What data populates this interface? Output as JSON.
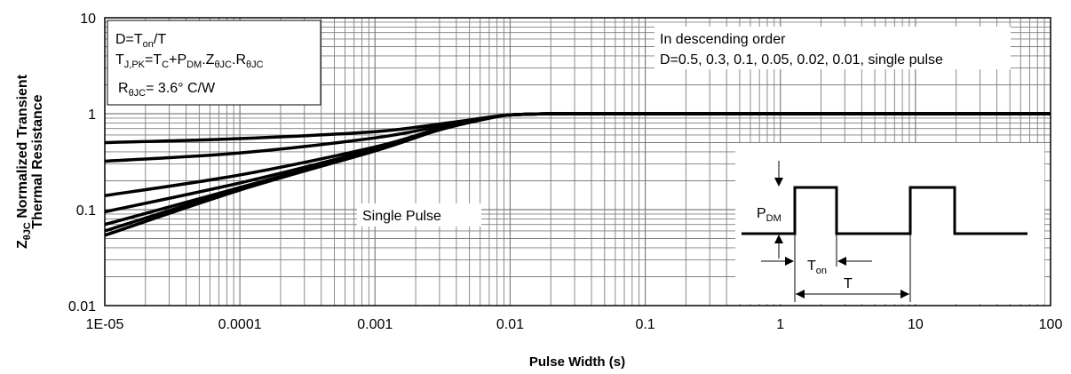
{
  "chart_data": {
    "type": "line",
    "xscale": "log",
    "yscale": "log",
    "xlim": [
      1e-05,
      100
    ],
    "ylim": [
      0.01,
      10
    ],
    "xticks": [
      "1E-05",
      "0.0001",
      "0.001",
      "0.01",
      "0.1",
      "1",
      "10",
      "100"
    ],
    "yticks": [
      "0.01",
      "0.1",
      "1",
      "10"
    ],
    "xlabel": "Pulse Width (s)",
    "ylabel_line1": "Normalized Transient",
    "ylabel_line2": "Thermal Resistance",
    "ylabel_prefix": "Z",
    "ylabel_prefix_sub": "θJC",
    "grid": true,
    "series": [
      {
        "duty": 0.5,
        "x": [
          1e-05,
          0.0001,
          0.001,
          0.003,
          0.007,
          0.01,
          0.02,
          0.1,
          1,
          10,
          100
        ],
        "y": [
          0.5,
          0.55,
          0.65,
          0.78,
          0.92,
          0.97,
          1.0,
          1.0,
          1.0,
          1.0,
          1.0
        ]
      },
      {
        "duty": 0.3,
        "x": [
          1e-05,
          0.0001,
          0.001,
          0.003,
          0.007,
          0.01,
          0.02,
          0.1,
          1,
          10,
          100
        ],
        "y": [
          0.32,
          0.39,
          0.56,
          0.74,
          0.91,
          0.97,
          1.0,
          1.0,
          1.0,
          1.0,
          1.0
        ]
      },
      {
        "duty": 0.1,
        "x": [
          1e-05,
          0.0001,
          0.001,
          0.003,
          0.007,
          0.01,
          0.02,
          0.1,
          1,
          10,
          100
        ],
        "y": [
          0.14,
          0.23,
          0.45,
          0.7,
          0.9,
          0.97,
          1.0,
          1.0,
          1.0,
          1.0,
          1.0
        ]
      },
      {
        "duty": 0.05,
        "x": [
          1e-05,
          0.0001,
          0.001,
          0.003,
          0.007,
          0.01,
          0.02,
          0.1,
          1,
          10,
          100
        ],
        "y": [
          0.095,
          0.19,
          0.43,
          0.69,
          0.9,
          0.97,
          1.0,
          1.0,
          1.0,
          1.0,
          1.0
        ]
      },
      {
        "duty": 0.02,
        "x": [
          1e-05,
          0.0001,
          0.001,
          0.003,
          0.007,
          0.01,
          0.02,
          0.1,
          1,
          10,
          100
        ],
        "y": [
          0.07,
          0.17,
          0.42,
          0.68,
          0.9,
          0.97,
          1.0,
          1.0,
          1.0,
          1.0,
          1.0
        ]
      },
      {
        "duty": 0.01,
        "x": [
          1e-05,
          0.0001,
          0.001,
          0.003,
          0.007,
          0.01,
          0.02,
          0.1,
          1,
          10,
          100
        ],
        "y": [
          0.06,
          0.165,
          0.41,
          0.68,
          0.9,
          0.97,
          1.0,
          1.0,
          1.0,
          1.0,
          1.0
        ]
      },
      {
        "duty": "single pulse",
        "x": [
          1e-05,
          0.0001,
          0.001,
          0.003,
          0.007,
          0.01,
          0.02,
          0.1,
          1,
          10,
          100
        ],
        "y": [
          0.054,
          0.16,
          0.41,
          0.68,
          0.9,
          0.97,
          1.0,
          1.0,
          1.0,
          1.0,
          1.0
        ]
      }
    ],
    "annotations": {
      "box_line1_a": "D=T",
      "box_line1_sub": "on",
      "box_line1_b": "/T",
      "box_line2": [
        {
          "t": "T",
          "sub": false
        },
        {
          "t": "J,PK",
          "sub": true
        },
        {
          "t": "=T",
          "sub": false
        },
        {
          "t": "C",
          "sub": true
        },
        {
          "t": "+P",
          "sub": false
        },
        {
          "t": "DM",
          "sub": true
        },
        {
          "t": ".Z",
          "sub": false
        },
        {
          "t": "θJC",
          "sub": true
        },
        {
          "t": ".R",
          "sub": false
        },
        {
          "t": "θJC",
          "sub": true
        }
      ],
      "box_line3_a": "R",
      "box_line3_sub": "θJC",
      "box_line3_b": "= 3.6° C/W",
      "order_line1": "In descending order",
      "order_line2": "D=0.5, 0.3, 0.1, 0.05, 0.02, 0.01, single pulse",
      "single_pulse": "Single Pulse",
      "pdm_a": "P",
      "pdm_sub": "DM",
      "ton_a": "T",
      "ton_sub": "on",
      "t_label": "T"
    },
    "colors": {
      "line": "#000000",
      "grid": "#7f7f7f",
      "axis": "#000000"
    }
  }
}
